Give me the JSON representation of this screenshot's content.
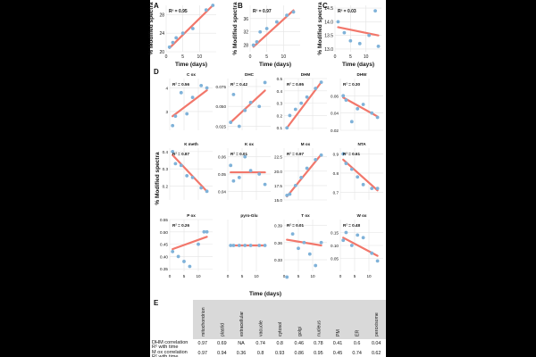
{
  "chart_data": {
    "type": "scatter",
    "panel_labels": [
      "A",
      "B",
      "C",
      "D",
      "E"
    ],
    "shared_xlabel": "Time (days)",
    "shared_ylabel": "% Modified spectra",
    "colors": {
      "point": "#7fb2d9",
      "fit": "#f2776b",
      "grid": "#e4e4e4",
      "table_header": "#d9d9d9"
    },
    "top_panels": [
      {
        "label": "A",
        "r2": "R² = 0.95",
        "x": [
          1,
          2,
          3,
          5,
          8,
          12,
          14
        ],
        "y": [
          21,
          22,
          23,
          24,
          25,
          29,
          30
        ],
        "fit": [
          [
            1,
            20.8
          ],
          [
            14,
            30
          ]
        ],
        "xlim": [
          0,
          15
        ],
        "ylim": [
          20,
          30
        ],
        "yticks": [
          "20",
          "24",
          "28"
        ],
        "xticks": [
          "0",
          "5",
          "10"
        ],
        "xlabel": "Time (days)",
        "ylabel": "% Modified spectra"
      },
      {
        "label": "B",
        "r2": "R² = 0.97",
        "x": [
          1,
          2,
          3,
          5,
          8,
          11,
          13
        ],
        "y": [
          28,
          29,
          32,
          33,
          35,
          37,
          38
        ],
        "fit": [
          [
            1,
            27.5
          ],
          [
            13,
            38.5
          ]
        ],
        "xlim": [
          0,
          15
        ],
        "ylim": [
          26,
          40
        ],
        "yticks": [
          "28",
          "32",
          "36"
        ],
        "xticks": [
          "0",
          "5",
          "10"
        ],
        "xlabel": "Time (days)",
        "ylabel": "% Modified spectra"
      },
      {
        "label": "C",
        "r2": "R² = 0.03",
        "x": [
          1,
          3,
          5,
          8,
          11,
          13,
          14
        ],
        "y": [
          14.0,
          13.6,
          13.3,
          13.2,
          13.5,
          14.4,
          13.1
        ],
        "fit": [
          [
            1,
            13.8
          ],
          [
            14,
            13.5
          ]
        ],
        "xlim": [
          0,
          15
        ],
        "ylim": [
          12.9,
          14.6
        ],
        "yticks": [
          "13.0",
          "13.5",
          "14.0",
          "14.5"
        ],
        "xticks": [
          "0",
          "5",
          "10"
        ],
        "xlabel": "Time (days)",
        "ylabel": "% Modified spectra"
      }
    ],
    "grid_panels": [
      {
        "title": "C ox",
        "r2": "R² = 0.56",
        "x": [
          1,
          2,
          4,
          6,
          8,
          11,
          13
        ],
        "y": [
          2.4,
          2.8,
          3.8,
          2.9,
          3.6,
          4.1,
          4.0
        ],
        "fit": [
          [
            1,
            2.8
          ],
          [
            13,
            3.9
          ]
        ],
        "ylim": [
          2.2,
          4.4
        ],
        "yticks": [
          "3",
          "4"
        ]
      },
      {
        "title": "DHC",
        "r2": "R² = 0.42",
        "x": [
          1,
          2,
          4,
          6,
          8,
          11,
          13
        ],
        "y": [
          0.03,
          0.065,
          0.025,
          0.045,
          0.055,
          0.05,
          0.08
        ],
        "fit": [
          [
            1,
            0.03
          ],
          [
            13,
            0.07
          ]
        ],
        "ylim": [
          0.02,
          0.085
        ],
        "yticks": [
          "0.025",
          "0.050",
          "0.075"
        ]
      },
      {
        "title": "DHM",
        "r2": "R² = 0.95",
        "x": [
          1,
          2,
          4,
          6,
          8,
          11,
          13
        ],
        "y": [
          0.1,
          0.2,
          0.25,
          0.3,
          0.35,
          0.42,
          0.47
        ],
        "fit": [
          [
            1,
            0.1
          ],
          [
            13,
            0.47
          ]
        ],
        "ylim": [
          0.08,
          0.5
        ],
        "yticks": [
          "0.1",
          "0.2",
          "0.3",
          "0.4",
          "0.5"
        ]
      },
      {
        "title": "DHW",
        "r2": "R² = 0.30",
        "x": [
          1,
          2,
          4,
          6,
          8,
          11,
          13
        ],
        "y": [
          0.06,
          0.055,
          0.03,
          0.045,
          0.05,
          0.04,
          0.035
        ],
        "fit": [
          [
            1,
            0.058
          ],
          [
            13,
            0.036
          ]
        ],
        "ylim": [
          0.02,
          0.08
        ],
        "yticks": [
          "0.02",
          "0.04",
          "0.06"
        ]
      },
      {
        "title": "K meth",
        "r2": "R² = 0.87",
        "x": [
          1,
          2,
          4,
          6,
          8,
          11,
          13
        ],
        "y": [
          0.4,
          0.33,
          0.32,
          0.26,
          0.25,
          0.19,
          0.17
        ],
        "fit": [
          [
            1,
            0.38
          ],
          [
            13,
            0.17
          ]
        ],
        "ylim": [
          0.12,
          0.42
        ],
        "yticks": [
          "0.2",
          "0.3",
          "0.4"
        ]
      },
      {
        "title": "K ox",
        "r2": "R² = 0.01",
        "x": [
          1,
          2,
          4,
          6,
          8,
          11,
          13
        ],
        "y": [
          0.055,
          0.046,
          0.048,
          0.06,
          0.052,
          0.05,
          0.044
        ],
        "fit": [
          [
            1,
            0.051
          ],
          [
            13,
            0.051
          ]
        ],
        "ylim": [
          0.035,
          0.065
        ],
        "yticks": [
          "0.04",
          "0.05",
          "0.06"
        ]
      },
      {
        "title": "M ox",
        "r2": "R² = 0.97",
        "x": [
          1,
          2,
          4,
          6,
          8,
          11,
          13
        ],
        "y": [
          15.8,
          16.0,
          17.5,
          18.9,
          20.5,
          22.0,
          22.8
        ],
        "fit": [
          [
            1,
            15.6
          ],
          [
            13,
            22.9
          ]
        ],
        "ylim": [
          15.0,
          24.0
        ],
        "yticks": [
          "15.0",
          "17.5",
          "20.0",
          "22.5"
        ]
      },
      {
        "title": "NTA",
        "r2": "R² = 0.61",
        "x": [
          1,
          2,
          4,
          6,
          8,
          11,
          13
        ],
        "y": [
          0.9,
          0.85,
          0.82,
          0.78,
          0.74,
          0.72,
          0.72
        ],
        "fit": [
          [
            1,
            0.87
          ],
          [
            13,
            0.71
          ]
        ],
        "ylim": [
          0.66,
          0.93
        ],
        "yticks": [
          "0.7",
          "0.8",
          "0.9"
        ]
      },
      {
        "title": "P ox",
        "r2": "R² = 0.26",
        "x": [
          1,
          3,
          5,
          7,
          10,
          12,
          13
        ],
        "y": [
          0.42,
          0.4,
          0.38,
          0.36,
          0.45,
          0.5,
          0.5
        ],
        "fit": [
          [
            1,
            0.43
          ],
          [
            13,
            0.48
          ]
        ],
        "ylim": [
          0.34,
          0.55
        ],
        "yticks": [
          "0.35",
          "0.40",
          "0.45",
          "0.50",
          "0.55"
        ]
      },
      {
        "title": "pyro-Glu",
        "r2": "",
        "x": [
          1,
          2,
          4,
          6,
          8,
          11,
          13
        ],
        "y": [
          0,
          0,
          0,
          0,
          0,
          0,
          0
        ],
        "fit": [
          [
            1,
            0
          ],
          [
            13,
            0
          ]
        ],
        "ylim": [
          -0.05,
          0.05
        ],
        "yticks": []
      },
      {
        "title": "T ox",
        "r2": "R² = 0.01",
        "x": [
          1,
          3,
          5,
          7,
          9,
          11,
          13
        ],
        "y": [
          0.3,
          0.375,
          0.35,
          0.36,
          0.34,
          0.32,
          0.36
        ],
        "fit": [
          [
            1,
            0.365
          ],
          [
            13,
            0.355
          ]
        ],
        "ylim": [
          0.31,
          0.4
        ],
        "yticks": [
          "0.33",
          "0.36",
          "0.39"
        ]
      },
      {
        "title": "W ox",
        "r2": "R² = 0.48",
        "x": [
          1,
          2,
          4,
          6,
          8,
          11,
          13
        ],
        "y": [
          0.12,
          0.15,
          0.1,
          0.14,
          0.13,
          0.07,
          0.04
        ],
        "fit": [
          [
            1,
            0.13
          ],
          [
            13,
            0.06
          ]
        ],
        "ylim": [
          0.0,
          0.2
        ],
        "yticks": [
          "0.05",
          "0.10",
          "0.15"
        ]
      }
    ],
    "grid_xticks": [
      "0",
      "5",
      "10"
    ],
    "grid_xlim": [
      0,
      15
    ],
    "grid_xlabel": "Time (days)",
    "grid_ylabel": "% Modified spectra",
    "table": {
      "columns": [
        "mitochondrion",
        "plastid",
        "extracellular",
        "vacuole",
        "cytosol",
        "golgi",
        "nucleus",
        "PM",
        "ER",
        "peroxisome"
      ],
      "rows": [
        {
          "label": [
            "DHM correlation",
            "R² with time"
          ],
          "values": [
            "0.97",
            "0.69",
            "NA",
            "0.74",
            "0.8",
            "0.46",
            "0.78",
            "0.41",
            "0.6",
            "0.04"
          ]
        },
        {
          "label": [
            "M ox correlation",
            "R² with time"
          ],
          "values": [
            "0.97",
            "0.94",
            "0.36",
            "0.8",
            "0.93",
            "0.86",
            "0.95",
            "0.45",
            "0.74",
            "0.62"
          ]
        }
      ]
    }
  }
}
